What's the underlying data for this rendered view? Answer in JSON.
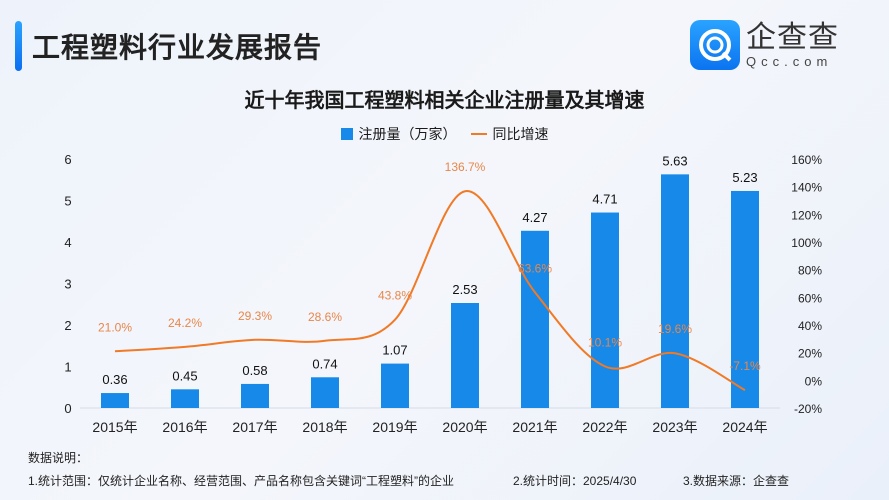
{
  "header": {
    "title": "工程塑料行业发展报告",
    "logo_cn": "企查查",
    "logo_en": "Qcc.com"
  },
  "chart_data": {
    "type": "bar+line",
    "title": "近十年我国工程塑料相关企业注册量及其增速",
    "categories": [
      "2015年",
      "2016年",
      "2017年",
      "2018年",
      "2019年",
      "2020年",
      "2021年",
      "2022年",
      "2023年",
      "2024年"
    ],
    "series": [
      {
        "name": "注册量（万家）",
        "type": "bar",
        "axis": "left",
        "color": "#1789e8",
        "values": [
          0.36,
          0.45,
          0.58,
          0.74,
          1.07,
          2.53,
          4.27,
          4.71,
          5.63,
          5.23
        ],
        "labels": [
          "0.36",
          "0.45",
          "0.58",
          "0.74",
          "1.07",
          "2.53",
          "4.27",
          "4.71",
          "5.63",
          "5.23"
        ]
      },
      {
        "name": "同比增速",
        "type": "line",
        "axis": "right",
        "color": "#f07a26",
        "values": [
          21.0,
          24.2,
          29.3,
          28.6,
          43.8,
          136.7,
          63.6,
          10.1,
          19.6,
          -7.1
        ],
        "labels": [
          "21.0%",
          "24.2%",
          "29.3%",
          "28.6%",
          "43.8%",
          "136.7%",
          "63.6%",
          "10.1%",
          "19.6%",
          "-7.1%"
        ]
      }
    ],
    "y_left": {
      "range": [
        0,
        6
      ],
      "ticks": [
        "0",
        "1",
        "2",
        "3",
        "4",
        "5",
        "6"
      ]
    },
    "y_right": {
      "range": [
        -20,
        160
      ],
      "ticks": [
        "-20%",
        "0%",
        "20%",
        "40%",
        "60%",
        "80%",
        "100%",
        "120%",
        "140%",
        "160%"
      ]
    },
    "legend": "top",
    "grid": false
  },
  "notes": {
    "heading": "数据说明：",
    "items": [
      "1.统计范围：仅统计企业名称、经营范围、产品名称包含关键词“工程塑料”的企业",
      "2.统计时间：2025/4/30",
      "3.数据来源：企查查"
    ]
  }
}
